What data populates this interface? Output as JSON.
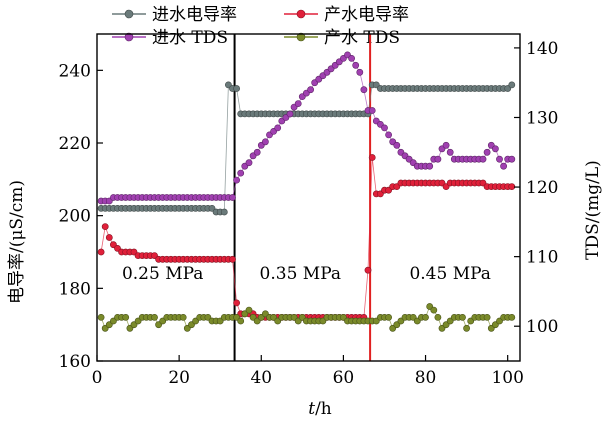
{
  "chart_data": {
    "type": "scatter",
    "xlabel_italic": "t",
    "xlabel_rest": "/h",
    "ylabel": "电导率/(μS/cm)",
    "y2label": "TDS/(mg/L)",
    "xlim": [
      0,
      103
    ],
    "ylim": [
      160,
      250
    ],
    "y2lim": [
      95,
      142
    ],
    "xticks": [
      0,
      20,
      40,
      60,
      80,
      100
    ],
    "yticks": [
      160,
      180,
      200,
      220,
      240
    ],
    "y2ticks": [
      100,
      110,
      120,
      130,
      140
    ],
    "legend_position": "top",
    "vlines": [
      {
        "x": 33.5,
        "color": "#000000"
      },
      {
        "x": 66.5,
        "color": "#e02020"
      }
    ],
    "annotations": [
      {
        "text": "0.25 MPa",
        "x": 16,
        "y": 182
      },
      {
        "text": "0.35 MPa",
        "x": 49.5,
        "y": 182
      },
      {
        "text": "0.45 MPa",
        "x": 86,
        "y": 182
      }
    ],
    "series": [
      {
        "name": "进水电导率",
        "axis": "left",
        "color": "#6a7a7a",
        "x": [
          1,
          2,
          3,
          4,
          5,
          6,
          7,
          8,
          9,
          10,
          11,
          12,
          13,
          14,
          15,
          16,
          17,
          18,
          19,
          20,
          21,
          22,
          23,
          24,
          25,
          26,
          27,
          28,
          29,
          30,
          31,
          32,
          33,
          34,
          35,
          36,
          37,
          38,
          39,
          40,
          41,
          42,
          43,
          44,
          45,
          46,
          47,
          48,
          49,
          50,
          51,
          52,
          53,
          54,
          55,
          56,
          57,
          58,
          59,
          60,
          61,
          62,
          63,
          64,
          65,
          66,
          67,
          68,
          69,
          70,
          71,
          72,
          73,
          74,
          75,
          76,
          77,
          78,
          79,
          80,
          81,
          82,
          83,
          84,
          85,
          86,
          87,
          88,
          89,
          90,
          91,
          92,
          93,
          94,
          95,
          96,
          97,
          98,
          99,
          100,
          101
        ],
        "y": [
          202,
          202,
          202,
          202,
          202,
          202,
          202,
          202,
          202,
          202,
          202,
          202,
          202,
          202,
          202,
          202,
          202,
          202,
          202,
          202,
          202,
          202,
          202,
          202,
          202,
          202,
          202,
          202,
          201,
          201,
          201,
          236,
          235,
          235,
          228,
          228,
          228,
          228,
          228,
          228,
          228,
          228,
          228,
          228,
          228,
          228,
          228,
          228,
          228,
          228,
          228,
          228,
          228,
          228,
          228,
          228,
          228,
          228,
          228,
          228,
          228,
          228,
          228,
          228,
          228,
          228,
          236,
          236,
          235,
          235,
          235,
          235,
          235,
          235,
          235,
          235,
          235,
          235,
          235,
          235,
          235,
          235,
          235,
          235,
          235,
          235,
          235,
          235,
          235,
          235,
          235,
          235,
          235,
          235,
          235,
          235,
          235,
          235,
          235,
          235,
          236
        ]
      },
      {
        "name": "产水电导率",
        "axis": "left",
        "color": "#e0203a",
        "x": [
          1,
          2,
          3,
          4,
          5,
          6,
          7,
          8,
          9,
          10,
          11,
          12,
          13,
          14,
          15,
          16,
          17,
          18,
          19,
          20,
          21,
          22,
          23,
          24,
          25,
          26,
          27,
          28,
          29,
          30,
          31,
          32,
          33,
          34,
          35,
          36,
          37,
          38,
          39,
          40,
          41,
          42,
          43,
          44,
          45,
          46,
          47,
          48,
          49,
          50,
          51,
          52,
          53,
          54,
          55,
          56,
          57,
          58,
          59,
          60,
          61,
          62,
          63,
          64,
          65,
          66,
          67,
          68,
          69,
          70,
          71,
          72,
          73,
          74,
          75,
          76,
          77,
          78,
          79,
          80,
          81,
          82,
          83,
          84,
          85,
          86,
          87,
          88,
          89,
          90,
          91,
          92,
          93,
          94,
          95,
          96,
          97,
          98,
          99,
          100,
          101
        ],
        "y": [
          190,
          197,
          194,
          192,
          191,
          190,
          190,
          190,
          190,
          189,
          189,
          189,
          189,
          189,
          188,
          188,
          188,
          188,
          188,
          188,
          188,
          188,
          188,
          188,
          188,
          188,
          188,
          188,
          188,
          188,
          188,
          188,
          188,
          176,
          173,
          173,
          173,
          173,
          172,
          172,
          172,
          172,
          172,
          172,
          172,
          172,
          172,
          172,
          172,
          172,
          172,
          172,
          172,
          172,
          172,
          172,
          172,
          172,
          172,
          172,
          172,
          172,
          172,
          172,
          172,
          185,
          216,
          206,
          206,
          207,
          207,
          208,
          208,
          209,
          209,
          209,
          209,
          209,
          209,
          209,
          209,
          209,
          209,
          209,
          208,
          209,
          209,
          209,
          209,
          209,
          209,
          209,
          209,
          209,
          208,
          208,
          208,
          208,
          208,
          208,
          208
        ]
      },
      {
        "name": "进水 TDS",
        "axis": "right",
        "color": "#a040b0",
        "x": [
          1,
          2,
          3,
          4,
          5,
          6,
          7,
          8,
          9,
          10,
          11,
          12,
          13,
          14,
          15,
          16,
          17,
          18,
          19,
          20,
          21,
          22,
          23,
          24,
          25,
          26,
          27,
          28,
          29,
          30,
          31,
          32,
          33,
          34,
          35,
          36,
          37,
          38,
          39,
          40,
          41,
          42,
          43,
          44,
          45,
          46,
          47,
          48,
          49,
          50,
          51,
          52,
          53,
          54,
          55,
          56,
          57,
          58,
          59,
          60,
          61,
          62,
          63,
          64,
          65,
          66,
          67,
          68,
          69,
          70,
          71,
          72,
          73,
          74,
          75,
          76,
          77,
          78,
          79,
          80,
          81,
          82,
          83,
          84,
          85,
          86,
          87,
          88,
          89,
          90,
          91,
          92,
          93,
          94,
          95,
          96,
          97,
          98,
          99,
          100,
          101
        ],
        "y": [
          118,
          118,
          118,
          118.5,
          118.5,
          118.5,
          118.5,
          118.5,
          118.5,
          118.5,
          118.5,
          118.5,
          118.5,
          118.5,
          118.5,
          118.5,
          118.5,
          118.5,
          118.5,
          118.5,
          118.5,
          118.5,
          118.5,
          118.5,
          118.5,
          118.5,
          118.5,
          118.5,
          118.5,
          118.5,
          118.5,
          118.5,
          118.5,
          121,
          122,
          123,
          123.5,
          124.5,
          125,
          126,
          126.5,
          127.5,
          128,
          128.5,
          129.5,
          130,
          130.5,
          131.5,
          132,
          133,
          133.5,
          134,
          135,
          135.5,
          136,
          136.5,
          137,
          137.5,
          138,
          138.5,
          139,
          138.5,
          137.5,
          136.5,
          134,
          131,
          131,
          129.5,
          129,
          128.5,
          127.5,
          126.5,
          126,
          125,
          124.5,
          124,
          123.5,
          123,
          123,
          123,
          123,
          124,
          124,
          125.5,
          126,
          125,
          124,
          124,
          124,
          124,
          124,
          124,
          124,
          124,
          125,
          126,
          125.5,
          124,
          123,
          124,
          124
        ]
      },
      {
        "name": "产水 TDS",
        "axis": "left",
        "color": "#7a8a2a",
        "x": [
          1,
          2,
          3,
          4,
          5,
          6,
          7,
          8,
          9,
          10,
          11,
          12,
          13,
          14,
          15,
          16,
          17,
          18,
          19,
          20,
          21,
          22,
          23,
          24,
          25,
          26,
          27,
          28,
          29,
          30,
          31,
          32,
          33,
          34,
          35,
          36,
          37,
          38,
          39,
          40,
          41,
          42,
          43,
          44,
          45,
          46,
          47,
          48,
          49,
          50,
          51,
          52,
          53,
          54,
          55,
          56,
          57,
          58,
          59,
          60,
          61,
          62,
          63,
          64,
          65,
          66,
          67,
          68,
          69,
          70,
          71,
          72,
          73,
          74,
          75,
          76,
          77,
          78,
          79,
          80,
          81,
          82,
          83,
          84,
          85,
          86,
          87,
          88,
          89,
          90,
          91,
          92,
          93,
          94,
          95,
          96,
          97,
          98,
          99,
          100,
          101
        ],
        "y": [
          172,
          169,
          170,
          171,
          172,
          172,
          172,
          169,
          170,
          171,
          172,
          172,
          172,
          172,
          170,
          171,
          172,
          172,
          172,
          172,
          172,
          169,
          170,
          171,
          172,
          172,
          172,
          171,
          171,
          171,
          172,
          172,
          172,
          172,
          171,
          173,
          174,
          172,
          171,
          172,
          173,
          172,
          172,
          171,
          172,
          172,
          172,
          172,
          171,
          172,
          171,
          171,
          171,
          171,
          171,
          172,
          172,
          172,
          172,
          172,
          171,
          171,
          171,
          171,
          171,
          171,
          171,
          171,
          172,
          172,
          172,
          169,
          170,
          171,
          172,
          172,
          172,
          171,
          172,
          172,
          175,
          174,
          172,
          169,
          170,
          171,
          172,
          172,
          172,
          169,
          171,
          172,
          172,
          172,
          172,
          169,
          170,
          171,
          172,
          172,
          172
        ]
      }
    ]
  }
}
